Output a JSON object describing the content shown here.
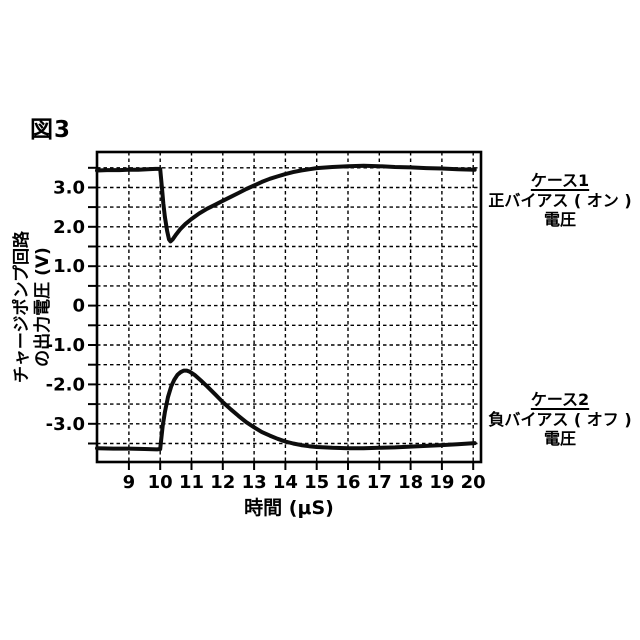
{
  "figure_label": "図3",
  "chart_data": {
    "type": "line",
    "title": "",
    "xlabel": "時間 (μS)",
    "ylabel": "チャージポンプ回路の出力電圧 (V)",
    "ylabel_lines": [
      "チャージポンプ回路",
      "の出力電圧 (V)"
    ],
    "xlim": [
      7.98,
      20.25
    ],
    "ylim": [
      -3.97,
      3.9
    ],
    "grid": "dashed, on",
    "legend_position": "right, as annotations",
    "xticks": [
      {
        "value": 9,
        "label": "9"
      },
      {
        "value": 10,
        "label": "10"
      },
      {
        "value": 11,
        "label": "11"
      },
      {
        "value": 12,
        "label": "12"
      },
      {
        "value": 13,
        "label": "13"
      },
      {
        "value": 14,
        "label": "14"
      },
      {
        "value": 15,
        "label": "15"
      },
      {
        "value": 16,
        "label": "16"
      },
      {
        "value": 17,
        "label": "17"
      },
      {
        "value": 18,
        "label": "18"
      },
      {
        "value": 19,
        "label": "19"
      },
      {
        "value": 20,
        "label": "20"
      }
    ],
    "yticks": [
      {
        "value": 3.5,
        "label": ""
      },
      {
        "value": 3.0,
        "label": "3.0"
      },
      {
        "value": 2.5,
        "label": ""
      },
      {
        "value": 2.0,
        "label": "2.0"
      },
      {
        "value": 1.5,
        "label": ""
      },
      {
        "value": 1.0,
        "label": "1.0"
      },
      {
        "value": 0.5,
        "label": ""
      },
      {
        "value": 0.0,
        "label": "0"
      },
      {
        "value": -0.5,
        "label": ""
      },
      {
        "value": -1.0,
        "label": "-1.0"
      },
      {
        "value": -1.5,
        "label": ""
      },
      {
        "value": -2.0,
        "label": "-2.0"
      },
      {
        "value": -2.5,
        "label": ""
      },
      {
        "value": -3.0,
        "label": "-3.0"
      },
      {
        "value": -3.5,
        "label": ""
      }
    ],
    "series": [
      {
        "id": "case1",
        "name": "ケース1 正バイアス(オン) 電圧",
        "points": [
          [
            7.98,
            3.43
          ],
          [
            8.3,
            3.44
          ],
          [
            8.7,
            3.44
          ],
          [
            9.0,
            3.45
          ],
          [
            9.3,
            3.45
          ],
          [
            9.6,
            3.46
          ],
          [
            9.85,
            3.47
          ],
          [
            10.0,
            3.47
          ],
          [
            10.02,
            3.3
          ],
          [
            10.06,
            2.95
          ],
          [
            10.1,
            2.6
          ],
          [
            10.15,
            2.25
          ],
          [
            10.22,
            1.9
          ],
          [
            10.28,
            1.68
          ],
          [
            10.33,
            1.63
          ],
          [
            10.4,
            1.68
          ],
          [
            10.5,
            1.8
          ],
          [
            10.65,
            1.95
          ],
          [
            10.8,
            2.07
          ],
          [
            11.0,
            2.2
          ],
          [
            11.25,
            2.34
          ],
          [
            11.5,
            2.46
          ],
          [
            11.75,
            2.56
          ],
          [
            12.0,
            2.66
          ],
          [
            12.25,
            2.76
          ],
          [
            12.5,
            2.86
          ],
          [
            12.75,
            2.96
          ],
          [
            13.0,
            3.05
          ],
          [
            13.25,
            3.14
          ],
          [
            13.5,
            3.22
          ],
          [
            13.75,
            3.28
          ],
          [
            14.0,
            3.34
          ],
          [
            14.25,
            3.39
          ],
          [
            14.5,
            3.43
          ],
          [
            14.75,
            3.46
          ],
          [
            15.0,
            3.49
          ],
          [
            15.5,
            3.52
          ],
          [
            16.0,
            3.54
          ],
          [
            16.5,
            3.55
          ],
          [
            17.0,
            3.54
          ],
          [
            17.5,
            3.52
          ],
          [
            18.0,
            3.51
          ],
          [
            18.5,
            3.49
          ],
          [
            19.0,
            3.48
          ],
          [
            19.5,
            3.46
          ],
          [
            20.05,
            3.45
          ]
        ]
      },
      {
        "id": "case2",
        "name": "ケース2 負バイアス(オフ) 電圧",
        "points": [
          [
            7.98,
            -3.62
          ],
          [
            8.5,
            -3.63
          ],
          [
            9.0,
            -3.63
          ],
          [
            9.5,
            -3.64
          ],
          [
            9.9,
            -3.65
          ],
          [
            10.0,
            -3.64
          ],
          [
            10.03,
            -3.4
          ],
          [
            10.08,
            -3.05
          ],
          [
            10.15,
            -2.7
          ],
          [
            10.25,
            -2.32
          ],
          [
            10.35,
            -2.05
          ],
          [
            10.45,
            -1.88
          ],
          [
            10.55,
            -1.76
          ],
          [
            10.65,
            -1.69
          ],
          [
            10.75,
            -1.65
          ],
          [
            10.85,
            -1.65
          ],
          [
            10.95,
            -1.68
          ],
          [
            11.1,
            -1.76
          ],
          [
            11.3,
            -1.9
          ],
          [
            11.5,
            -2.05
          ],
          [
            11.75,
            -2.25
          ],
          [
            12.0,
            -2.45
          ],
          [
            12.25,
            -2.63
          ],
          [
            12.5,
            -2.8
          ],
          [
            12.75,
            -2.96
          ],
          [
            13.0,
            -3.09
          ],
          [
            13.25,
            -3.21
          ],
          [
            13.5,
            -3.3
          ],
          [
            13.75,
            -3.38
          ],
          [
            14.0,
            -3.45
          ],
          [
            14.25,
            -3.5
          ],
          [
            14.5,
            -3.54
          ],
          [
            14.75,
            -3.57
          ],
          [
            15.0,
            -3.59
          ],
          [
            15.5,
            -3.61
          ],
          [
            16.0,
            -3.62
          ],
          [
            16.5,
            -3.62
          ],
          [
            17.0,
            -3.61
          ],
          [
            17.5,
            -3.6
          ],
          [
            18.0,
            -3.58
          ],
          [
            18.5,
            -3.56
          ],
          [
            19.0,
            -3.54
          ],
          [
            19.5,
            -3.52
          ],
          [
            20.05,
            -3.49
          ]
        ]
      }
    ]
  },
  "annotations": {
    "case1": {
      "title": "ケース1",
      "line1": "正バイアス ( オン )",
      "line2": "電圧"
    },
    "case2": {
      "title": "ケース2",
      "line1": "負バイアス ( オフ )",
      "line2": "電圧"
    }
  },
  "colors": {
    "line": "#000000",
    "background": "#ffffff",
    "grid": "#000000",
    "text": "#000000"
  }
}
